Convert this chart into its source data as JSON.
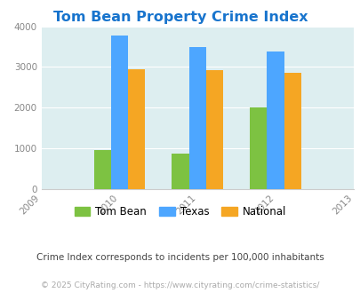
{
  "title": "Tom Bean Property Crime Index",
  "years": [
    2009,
    2010,
    2011,
    2012,
    2013
  ],
  "bar_years": [
    2010,
    2011,
    2012
  ],
  "tom_bean": [
    950,
    870,
    2000
  ],
  "texas": [
    3780,
    3490,
    3380
  ],
  "national": [
    2950,
    2930,
    2860
  ],
  "bar_width": 0.22,
  "colors": {
    "tom_bean": "#7dc242",
    "texas": "#4da6ff",
    "national": "#f5a623"
  },
  "ylim": [
    0,
    4000
  ],
  "yticks": [
    0,
    1000,
    2000,
    3000,
    4000
  ],
  "background_color": "#ddeef0",
  "title_color": "#1874cd",
  "subtitle": "Crime Index corresponds to incidents per 100,000 inhabitants",
  "footer": "© 2025 CityRating.com - https://www.cityrating.com/crime-statistics/",
  "subtitle_color": "#444444",
  "footer_color": "#aaaaaa",
  "grid_color": "#c8dde0"
}
